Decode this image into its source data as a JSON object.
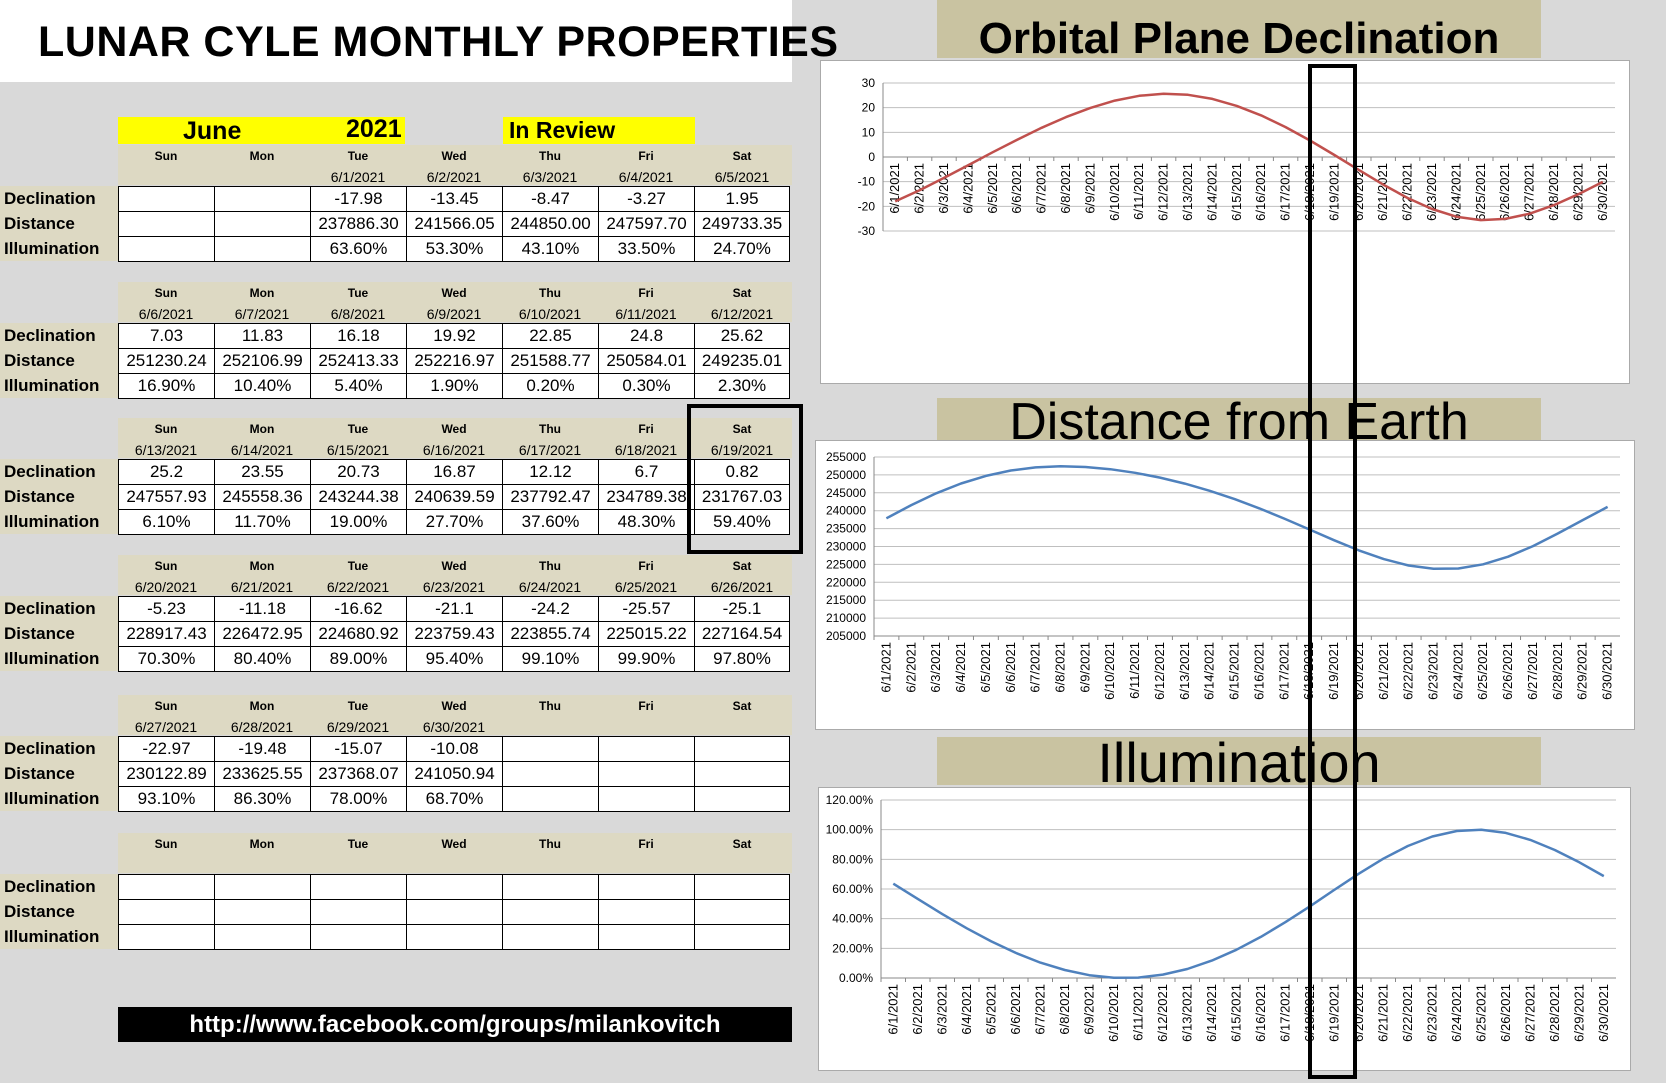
{
  "title": "LUNAR CYLE MONTHLY PROPERTIES",
  "header": {
    "month": "June",
    "year": "2021",
    "note": "In Review"
  },
  "row_labels": [
    "Declination",
    "Distance",
    "Illumination"
  ],
  "weeks": [
    {
      "days": [
        {
          "name": "Sun",
          "date": "",
          "dec": "",
          "dist": "",
          "illum": ""
        },
        {
          "name": "Mon",
          "date": "",
          "dec": "",
          "dist": "",
          "illum": ""
        },
        {
          "name": "Tue",
          "date": "6/1/2021",
          "dec": "-17.98",
          "dist": "237886.30",
          "illum": "63.60%"
        },
        {
          "name": "Wed",
          "date": "6/2/2021",
          "dec": "-13.45",
          "dist": "241566.05",
          "illum": "53.30%"
        },
        {
          "name": "Thu",
          "date": "6/3/2021",
          "dec": "-8.47",
          "dist": "244850.00",
          "illum": "43.10%"
        },
        {
          "name": "Fri",
          "date": "6/4/2021",
          "dec": "-3.27",
          "dist": "247597.70",
          "illum": "33.50%"
        },
        {
          "name": "Sat",
          "date": "6/5/2021",
          "dec": "1.95",
          "dist": "249733.35",
          "illum": "24.70%"
        }
      ]
    },
    {
      "days": [
        {
          "name": "Sun",
          "date": "6/6/2021",
          "dec": "7.03",
          "dist": "251230.24",
          "illum": "16.90%"
        },
        {
          "name": "Mon",
          "date": "6/7/2021",
          "dec": "11.83",
          "dist": "252106.99",
          "illum": "10.40%"
        },
        {
          "name": "Tue",
          "date": "6/8/2021",
          "dec": "16.18",
          "dist": "252413.33",
          "illum": "5.40%"
        },
        {
          "name": "Wed",
          "date": "6/9/2021",
          "dec": "19.92",
          "dist": "252216.97",
          "illum": "1.90%"
        },
        {
          "name": "Thu",
          "date": "6/10/2021",
          "dec": "22.85",
          "dist": "251588.77",
          "illum": "0.20%"
        },
        {
          "name": "Fri",
          "date": "6/11/2021",
          "dec": "24.8",
          "dist": "250584.01",
          "illum": "0.30%"
        },
        {
          "name": "Sat",
          "date": "6/12/2021",
          "dec": "25.62",
          "dist": "249235.01",
          "illum": "2.30%"
        }
      ]
    },
    {
      "days": [
        {
          "name": "Sun",
          "date": "6/13/2021",
          "dec": "25.2",
          "dist": "247557.93",
          "illum": "6.10%"
        },
        {
          "name": "Mon",
          "date": "6/14/2021",
          "dec": "23.55",
          "dist": "245558.36",
          "illum": "11.70%"
        },
        {
          "name": "Tue",
          "date": "6/15/2021",
          "dec": "20.73",
          "dist": "243244.38",
          "illum": "19.00%"
        },
        {
          "name": "Wed",
          "date": "6/16/2021",
          "dec": "16.87",
          "dist": "240639.59",
          "illum": "27.70%"
        },
        {
          "name": "Thu",
          "date": "6/17/2021",
          "dec": "12.12",
          "dist": "237792.47",
          "illum": "37.60%"
        },
        {
          "name": "Fri",
          "date": "6/18/2021",
          "dec": "6.7",
          "dist": "234789.38",
          "illum": "48.30%"
        },
        {
          "name": "Sat",
          "date": "6/19/2021",
          "dec": "0.82",
          "dist": "231767.03",
          "illum": "59.40%"
        }
      ]
    },
    {
      "days": [
        {
          "name": "Sun",
          "date": "6/20/2021",
          "dec": "-5.23",
          "dist": "228917.43",
          "illum": "70.30%"
        },
        {
          "name": "Mon",
          "date": "6/21/2021",
          "dec": "-11.18",
          "dist": "226472.95",
          "illum": "80.40%"
        },
        {
          "name": "Tue",
          "date": "6/22/2021",
          "dec": "-16.62",
          "dist": "224680.92",
          "illum": "89.00%"
        },
        {
          "name": "Wed",
          "date": "6/23/2021",
          "dec": "-21.1",
          "dist": "223759.43",
          "illum": "95.40%"
        },
        {
          "name": "Thu",
          "date": "6/24/2021",
          "dec": "-24.2",
          "dist": "223855.74",
          "illum": "99.10%"
        },
        {
          "name": "Fri",
          "date": "6/25/2021",
          "dec": "-25.57",
          "dist": "225015.22",
          "illum": "99.90%"
        },
        {
          "name": "Sat",
          "date": "6/26/2021",
          "dec": "-25.1",
          "dist": "227164.54",
          "illum": "97.80%"
        }
      ]
    },
    {
      "days": [
        {
          "name": "Sun",
          "date": "6/27/2021",
          "dec": "-22.97",
          "dist": "230122.89",
          "illum": "93.10%"
        },
        {
          "name": "Mon",
          "date": "6/28/2021",
          "dec": "-19.48",
          "dist": "233625.55",
          "illum": "86.30%"
        },
        {
          "name": "Tue",
          "date": "6/29/2021",
          "dec": "-15.07",
          "dist": "237368.07",
          "illum": "78.00%"
        },
        {
          "name": "Wed",
          "date": "6/30/2021",
          "dec": "-10.08",
          "dist": "241050.94",
          "illum": "68.70%"
        },
        {
          "name": "Thu",
          "date": "",
          "dec": "",
          "dist": "",
          "illum": ""
        },
        {
          "name": "Fri",
          "date": "",
          "dec": "",
          "dist": "",
          "illum": ""
        },
        {
          "name": "Sat",
          "date": "",
          "dec": "",
          "dist": "",
          "illum": ""
        }
      ]
    },
    {
      "days": [
        {
          "name": "Sun",
          "date": "",
          "dec": "",
          "dist": "",
          "illum": ""
        },
        {
          "name": "Mon",
          "date": "",
          "dec": "",
          "dist": "",
          "illum": ""
        },
        {
          "name": "Tue",
          "date": "",
          "dec": "",
          "dist": "",
          "illum": ""
        },
        {
          "name": "Wed",
          "date": "",
          "dec": "",
          "dist": "",
          "illum": ""
        },
        {
          "name": "Thu",
          "date": "",
          "dec": "",
          "dist": "",
          "illum": ""
        },
        {
          "name": "Fri",
          "date": "",
          "dec": "",
          "dist": "",
          "illum": ""
        },
        {
          "name": "Sat",
          "date": "",
          "dec": "",
          "dist": "",
          "illum": ""
        }
      ]
    }
  ],
  "footer": "http://www.facebook.com/groups/milankovitch",
  "chart_data": [
    {
      "type": "line",
      "title": "Orbital Plane Declination",
      "x": [
        "6/1/2021",
        "6/2/2021",
        "6/3/2021",
        "6/4/2021",
        "6/5/2021",
        "6/6/2021",
        "6/7/2021",
        "6/8/2021",
        "6/9/2021",
        "6/10/2021",
        "6/11/2021",
        "6/12/2021",
        "6/13/2021",
        "6/14/2021",
        "6/15/2021",
        "6/16/2021",
        "6/17/2021",
        "6/18/2021",
        "6/19/2021",
        "6/20/2021",
        "6/21/2021",
        "6/22/2021",
        "6/23/2021",
        "6/24/2021",
        "6/25/2021",
        "6/26/2021",
        "6/27/2021",
        "6/28/2021",
        "6/29/2021",
        "6/30/2021"
      ],
      "series": [
        {
          "values": [
            -17.98,
            -13.45,
            -8.47,
            -3.27,
            1.95,
            7.03,
            11.83,
            16.18,
            19.92,
            22.85,
            24.8,
            25.62,
            25.2,
            23.55,
            20.73,
            16.87,
            12.12,
            6.7,
            0.82,
            -5.23,
            -11.18,
            -16.62,
            -21.1,
            -24.2,
            -25.57,
            -25.1,
            -22.97,
            -19.48,
            -15.07,
            -10.08
          ],
          "color": "#c0504d"
        }
      ],
      "ylim": [
        -30,
        30
      ],
      "yticks": [
        "30",
        "20",
        "10",
        "0",
        "-10",
        "-20",
        "-30"
      ],
      "yticks_values": [
        30,
        20,
        10,
        0,
        -10,
        -20,
        -30
      ],
      "grid": true
    },
    {
      "type": "line",
      "title": "Distance from Earth",
      "x": [
        "6/1/2021",
        "6/2/2021",
        "6/3/2021",
        "6/4/2021",
        "6/5/2021",
        "6/6/2021",
        "6/7/2021",
        "6/8/2021",
        "6/9/2021",
        "6/10/2021",
        "6/11/2021",
        "6/12/2021",
        "6/13/2021",
        "6/14/2021",
        "6/15/2021",
        "6/16/2021",
        "6/17/2021",
        "6/18/2021",
        "6/19/2021",
        "6/20/2021",
        "6/21/2021",
        "6/22/2021",
        "6/23/2021",
        "6/24/2021",
        "6/25/2021",
        "6/26/2021",
        "6/27/2021",
        "6/28/2021",
        "6/29/2021",
        "6/30/2021"
      ],
      "series": [
        {
          "values": [
            237886.3,
            241566.05,
            244850.0,
            247597.7,
            249733.35,
            251230.24,
            252106.99,
            252413.33,
            252216.97,
            251588.77,
            250584.01,
            249235.01,
            247557.93,
            245558.36,
            243244.38,
            240639.59,
            237792.47,
            234789.38,
            231767.03,
            228917.43,
            226472.95,
            224680.92,
            223759.43,
            223855.74,
            225015.22,
            227164.54,
            230122.89,
            233625.55,
            237368.07,
            241050.94
          ],
          "color": "#4f81bd"
        }
      ],
      "ylim": [
        205000,
        255000
      ],
      "yticks": [
        "255000",
        "250000",
        "245000",
        "240000",
        "235000",
        "230000",
        "225000",
        "220000",
        "215000",
        "210000",
        "205000"
      ],
      "yticks_values": [
        255000,
        250000,
        245000,
        240000,
        235000,
        230000,
        225000,
        220000,
        215000,
        210000,
        205000
      ],
      "grid": true
    },
    {
      "type": "line",
      "title": "Illumination",
      "x": [
        "6/1/2021",
        "6/2/2021",
        "6/3/2021",
        "6/4/2021",
        "6/5/2021",
        "6/6/2021",
        "6/7/2021",
        "6/8/2021",
        "6/9/2021",
        "6/10/2021",
        "6/11/2021",
        "6/12/2021",
        "6/13/2021",
        "6/14/2021",
        "6/15/2021",
        "6/16/2021",
        "6/17/2021",
        "6/18/2021",
        "6/19/2021",
        "6/20/2021",
        "6/21/2021",
        "6/22/2021",
        "6/23/2021",
        "6/24/2021",
        "6/25/2021",
        "6/26/2021",
        "6/27/2021",
        "6/28/2021",
        "6/29/2021",
        "6/30/2021"
      ],
      "series": [
        {
          "values": [
            63.6,
            53.3,
            43.1,
            33.5,
            24.7,
            16.9,
            10.4,
            5.4,
            1.9,
            0.2,
            0.3,
            2.3,
            6.1,
            11.7,
            19.0,
            27.7,
            37.6,
            48.3,
            59.4,
            70.3,
            80.4,
            89.0,
            95.4,
            99.1,
            99.9,
            97.8,
            93.1,
            86.3,
            78.0,
            68.7
          ],
          "color": "#4f81bd"
        }
      ],
      "ylim": [
        0,
        120
      ],
      "yticks": [
        "120.00%",
        "100.00%",
        "80.00%",
        "60.00%",
        "40.00%",
        "20.00%",
        "0.00%"
      ],
      "yticks_values": [
        120,
        100,
        80,
        60,
        40,
        20,
        0
      ],
      "grid": true
    }
  ]
}
